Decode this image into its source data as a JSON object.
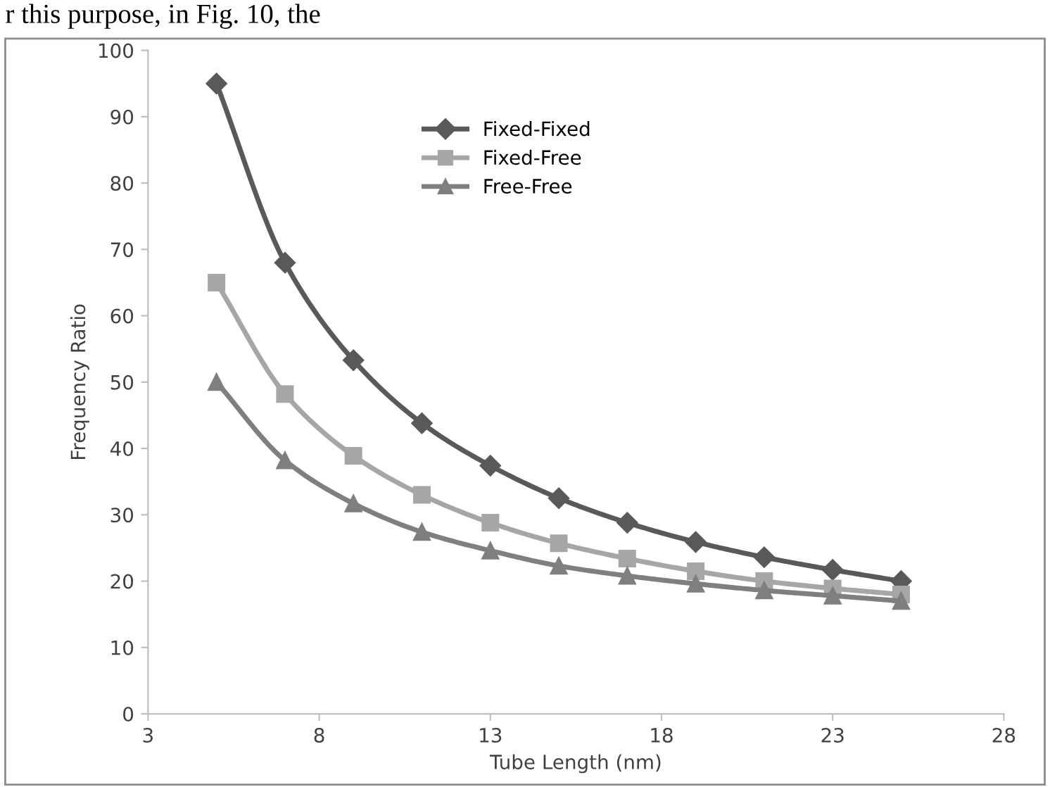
{
  "chart_data": {
    "type": "line",
    "xlabel": "Tube Length (nm)",
    "ylabel": "Frequency Ratio",
    "annotations": [
      "r this purpose, in Fig. 10, the"
    ],
    "x": [
      5,
      7,
      9,
      11,
      13,
      15,
      17,
      19,
      21,
      23,
      25
    ],
    "series": [
      {
        "name": "Fixed-Fixed",
        "color": "#595959",
        "marker": "diamond",
        "values": [
          95,
          68,
          53.3,
          43.8,
          37.4,
          32.5,
          28.8,
          25.9,
          23.6,
          21.7,
          20
        ]
      },
      {
        "name": "Fixed-Free",
        "color": "#a6a6a6",
        "marker": "square",
        "values": [
          65,
          48.2,
          38.9,
          33,
          28.8,
          25.7,
          23.4,
          21.5,
          20,
          18.9,
          18
        ]
      },
      {
        "name": "Free-Free",
        "color": "#7f7f7f",
        "marker": "triangle",
        "values": [
          50,
          38.2,
          31.7,
          27.4,
          24.6,
          22.3,
          20.8,
          19.6,
          18.6,
          17.8,
          17
        ]
      }
    ],
    "xlim": [
      3,
      28
    ],
    "xticks": [
      3,
      8,
      13,
      18,
      23,
      28
    ],
    "ylim": [
      0,
      100
    ],
    "yticks": [
      0,
      10,
      20,
      30,
      40,
      50,
      60,
      70,
      80,
      90,
      100
    ],
    "grid": false,
    "legend": "top",
    "line_style": "solid"
  }
}
